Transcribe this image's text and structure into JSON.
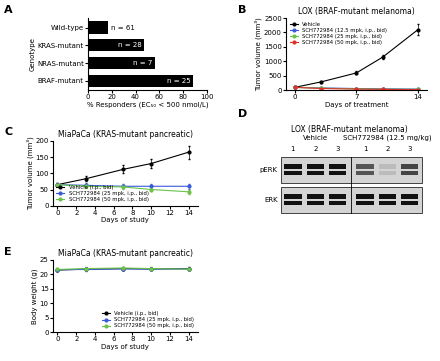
{
  "chart_data": [
    {
      "panel_label": "A",
      "type": "bar",
      "orientation": "horizontal",
      "categories": [
        "Wild-type",
        "KRAS-mutant",
        "NRAS-mutant",
        "BRAF-mutant"
      ],
      "values": [
        17,
        47,
        56,
        88
      ],
      "annotations": [
        "n = 61",
        "n = 28",
        "n = 7",
        "n = 25"
      ],
      "color": "#000000",
      "xlabel": "% Responders (EC₅₀ < 500 nmol/L)",
      "ylabel": "Genotype",
      "xlim": [
        0,
        100
      ],
      "xticks": [
        0,
        20,
        40,
        60,
        80,
        100
      ]
    },
    {
      "panel_label": "B",
      "type": "line",
      "title": "LOX (BRAF-mutant melanoma)",
      "xlabel": "Days of treatment",
      "ylabel": "Tumor volume (mm³)",
      "x": [
        0,
        3,
        7,
        10,
        14
      ],
      "xlim": [
        -1,
        15
      ],
      "xticks": [
        0,
        7,
        14
      ],
      "ylim": [
        0,
        2500
      ],
      "yticks": [
        0,
        500,
        1000,
        1500,
        2000,
        2500
      ],
      "legend": "upper left",
      "series": [
        {
          "name": "Vehicle",
          "color": "#000000",
          "marker": "o",
          "values": [
            100,
            290,
            600,
            1150,
            2100
          ],
          "errors": [
            20,
            40,
            50,
            80,
            200
          ]
        },
        {
          "name": "SCH772984 (12.5 mpk, i.p., bid)",
          "color": "#3a5bd9",
          "marker": "o",
          "values": [
            100,
            80,
            60,
            50,
            40
          ],
          "errors": [
            15,
            12,
            10,
            10,
            8
          ]
        },
        {
          "name": "SCH772984 (25 mpk, i.p., bid)",
          "color": "#6cc24a",
          "marker": "o",
          "values": [
            100,
            70,
            50,
            40,
            30
          ],
          "errors": [
            15,
            12,
            10,
            8,
            8
          ]
        },
        {
          "name": "SCH772984 (50 mpk, i.p., bid)",
          "color": "#e0302a",
          "marker": "o",
          "values": [
            100,
            60,
            40,
            30,
            20
          ],
          "errors": [
            15,
            10,
            8,
            8,
            6
          ]
        }
      ]
    },
    {
      "panel_label": "C",
      "type": "line",
      "title": "MiaPaCa (KRAS-mutant pancreatic)",
      "xlabel": "Days of study",
      "ylabel": "Tumor volume (mm³)",
      "x": [
        0,
        3,
        7,
        10,
        14
      ],
      "xlim": [
        -0.5,
        15
      ],
      "xticks": [
        0,
        2,
        4,
        6,
        8,
        10,
        12,
        14
      ],
      "ylim": [
        0,
        200
      ],
      "yticks": [
        0,
        50,
        100,
        150,
        200
      ],
      "legend": "lower left",
      "series": [
        {
          "name": "Vehicle (i.p., bid)",
          "color": "#000000",
          "marker": "o",
          "values": [
            65,
            83,
            112,
            130,
            165
          ],
          "errors": [
            5,
            8,
            12,
            15,
            20
          ]
        },
        {
          "name": "SCH772984 (25 mpk, i.p., bid)",
          "color": "#3a5bd9",
          "marker": "o",
          "values": [
            65,
            63,
            60,
            60,
            60
          ],
          "errors": [
            5,
            6,
            6,
            7,
            8
          ]
        },
        {
          "name": "SCH772984 (50 mpk, i.p., bid)",
          "color": "#6cc24a",
          "marker": "o",
          "values": [
            65,
            60,
            58,
            50,
            43
          ],
          "errors": [
            5,
            6,
            6,
            6,
            6
          ]
        }
      ]
    },
    {
      "panel_label": "E",
      "type": "line",
      "title": "MiaPaCa (KRAS-mutant pancreatic)",
      "xlabel": "Days of study",
      "ylabel": "Body weight (g)",
      "x": [
        0,
        3,
        7,
        10,
        14
      ],
      "xlim": [
        -0.5,
        15
      ],
      "xticks": [
        0,
        2,
        4,
        6,
        8,
        10,
        12,
        14
      ],
      "ylim": [
        0,
        25
      ],
      "yticks": [
        0,
        5,
        10,
        15,
        20,
        25
      ],
      "legend": "lower right",
      "series": [
        {
          "name": "Vehicle (i.p., bid)",
          "color": "#000000",
          "marker": "o",
          "values": [
            21.5,
            21.8,
            22.0,
            21.9,
            22.0
          ],
          "errors": [
            0.4,
            0.4,
            0.4,
            0.4,
            0.4
          ]
        },
        {
          "name": "SCH772984 (25 mpk, i.p., bid)",
          "color": "#3a5bd9",
          "marker": "o",
          "values": [
            21.6,
            21.7,
            21.9,
            21.8,
            21.9
          ],
          "errors": [
            0.4,
            0.4,
            0.4,
            0.4,
            0.4
          ]
        },
        {
          "name": "SCH772984 (50 mpk, i.p., bid)",
          "color": "#6cc24a",
          "marker": "o",
          "values": [
            21.7,
            22.0,
            22.2,
            22.0,
            21.8
          ],
          "errors": [
            0.4,
            0.4,
            0.4,
            0.4,
            0.4
          ]
        }
      ]
    }
  ],
  "blot": {
    "panel_label": "D",
    "title": "LOX (BRAF-mutant melanoma)",
    "groups": [
      {
        "name": "Vehicle",
        "lanes": [
          "1",
          "2",
          "3"
        ]
      },
      {
        "name": "SCH772984 (12.5 mg/kg)",
        "lanes": [
          "1",
          "2",
          "3"
        ]
      }
    ],
    "rows": [
      "pERK",
      "ERK"
    ]
  }
}
